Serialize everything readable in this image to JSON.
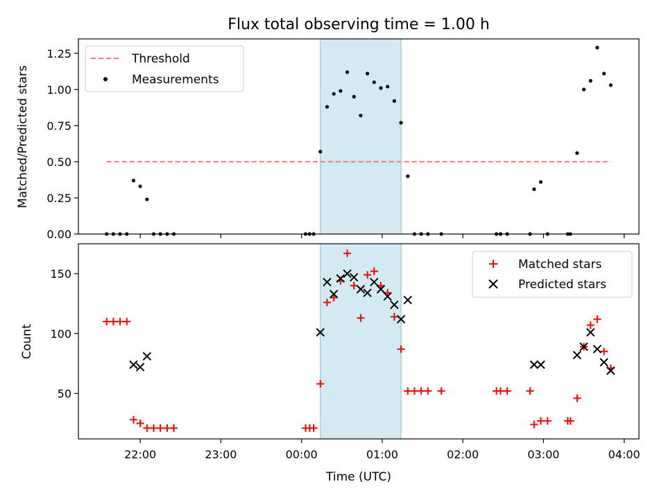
{
  "title": "Flux total observing time = 1.00 h",
  "xlabel": "Time (UTC)",
  "x_ticks": [
    "22:00",
    "23:00",
    "00:00",
    "01:00",
    "02:00",
    "03:00",
    "04:00"
  ],
  "colors": {
    "threshold": "#ff7777",
    "measurement": "#000000",
    "matched": "#ff0000",
    "predicted": "#000000",
    "shade": "#add8e6"
  },
  "chart_data": [
    {
      "type": "scatter",
      "ylabel": "Matched/Predicted stars",
      "xlim": [
        "21:14",
        "04:11"
      ],
      "ylim": [
        0,
        1.35
      ],
      "y_ticks": [
        "0.00",
        "0.25",
        "0.50",
        "0.75",
        "1.00",
        "1.25"
      ],
      "shaded_interval": [
        "00:14",
        "01:14"
      ],
      "threshold": {
        "label": "Threshold",
        "value": 0.5,
        "x_range": [
          "21:35",
          "03:50"
        ]
      },
      "legend": {
        "placement": "top-left",
        "entries": [
          "Threshold",
          "Measurements"
        ]
      },
      "series": [
        {
          "name": "Measurements",
          "marker": "dot",
          "points": [
            [
              "21:35",
              0
            ],
            [
              "21:40",
              0
            ],
            [
              "21:45",
              0
            ],
            [
              "21:50",
              0
            ],
            [
              "21:55",
              0.37
            ],
            [
              "22:00",
              0.33
            ],
            [
              "22:05",
              0.24
            ],
            [
              "22:10",
              0
            ],
            [
              "22:15",
              0
            ],
            [
              "22:20",
              0
            ],
            [
              "22:25",
              0
            ],
            [
              "00:03",
              0
            ],
            [
              "00:06",
              0
            ],
            [
              "00:09",
              0
            ],
            [
              "00:14",
              0.57
            ],
            [
              "00:19",
              0.88
            ],
            [
              "00:24",
              0.97
            ],
            [
              "00:29",
              0.99
            ],
            [
              "00:34",
              1.12
            ],
            [
              "00:39",
              0.95
            ],
            [
              "00:44",
              0.82
            ],
            [
              "00:49",
              1.11
            ],
            [
              "00:54",
              1.05
            ],
            [
              "00:59",
              1.01
            ],
            [
              "01:04",
              1.02
            ],
            [
              "01:09",
              0.92
            ],
            [
              "01:14",
              0.77
            ],
            [
              "01:19",
              0.4
            ],
            [
              "01:24",
              0
            ],
            [
              "01:29",
              0
            ],
            [
              "01:34",
              0
            ],
            [
              "01:44",
              0
            ],
            [
              "02:25",
              0
            ],
            [
              "02:28",
              0
            ],
            [
              "02:33",
              0
            ],
            [
              "02:50",
              0
            ],
            [
              "02:53",
              0.31
            ],
            [
              "02:58",
              0.36
            ],
            [
              "03:03",
              0
            ],
            [
              "03:18",
              0
            ],
            [
              "03:20",
              0
            ],
            [
              "03:25",
              0.56
            ],
            [
              "03:30",
              1.0
            ],
            [
              "03:35",
              1.06
            ],
            [
              "03:40",
              1.29
            ],
            [
              "03:45",
              1.11
            ],
            [
              "03:50",
              1.03
            ]
          ]
        }
      ]
    },
    {
      "type": "scatter",
      "ylabel": "Count",
      "xlim": [
        "21:14",
        "04:11"
      ],
      "ylim": [
        12,
        175
      ],
      "y_ticks": [
        "50",
        "100",
        "150"
      ],
      "shaded_interval": [
        "00:14",
        "01:14"
      ],
      "legend": {
        "placement": "top-right",
        "entries": [
          "Matched stars",
          "Predicted stars"
        ]
      },
      "series": [
        {
          "name": "Matched stars",
          "marker": "plus",
          "points": [
            [
              "21:35",
              110
            ],
            [
              "21:40",
              110
            ],
            [
              "21:45",
              110
            ],
            [
              "21:50",
              110
            ],
            [
              "21:55",
              28
            ],
            [
              "22:00",
              25
            ],
            [
              "22:05",
              21
            ],
            [
              "22:10",
              21
            ],
            [
              "22:15",
              21
            ],
            [
              "22:20",
              21
            ],
            [
              "22:25",
              21
            ],
            [
              "00:03",
              21
            ],
            [
              "00:06",
              21
            ],
            [
              "00:09",
              21
            ],
            [
              "00:14",
              58
            ],
            [
              "00:19",
              126
            ],
            [
              "00:24",
              130
            ],
            [
              "00:29",
              144
            ],
            [
              "00:34",
              167
            ],
            [
              "00:39",
              140
            ],
            [
              "00:44",
              113
            ],
            [
              "00:49",
              149
            ],
            [
              "00:54",
              152
            ],
            [
              "00:59",
              140
            ],
            [
              "01:04",
              134
            ],
            [
              "01:09",
              114
            ],
            [
              "01:14",
              87
            ],
            [
              "01:19",
              52
            ],
            [
              "01:24",
              52
            ],
            [
              "01:29",
              52
            ],
            [
              "01:34",
              52
            ],
            [
              "01:44",
              52
            ],
            [
              "02:25",
              52
            ],
            [
              "02:28",
              52
            ],
            [
              "02:33",
              52
            ],
            [
              "02:50",
              52
            ],
            [
              "02:53",
              24
            ],
            [
              "02:58",
              27
            ],
            [
              "03:03",
              27
            ],
            [
              "03:18",
              27
            ],
            [
              "03:20",
              27
            ],
            [
              "03:25",
              46
            ],
            [
              "03:30",
              89
            ],
            [
              "03:35",
              107
            ],
            [
              "03:40",
              112
            ],
            [
              "03:45",
              85
            ],
            [
              "03:50",
              71
            ]
          ]
        },
        {
          "name": "Predicted stars",
          "marker": "x",
          "points": [
            [
              "21:55",
              74
            ],
            [
              "22:00",
              72
            ],
            [
              "22:05",
              81
            ],
            [
              "00:14",
              101
            ],
            [
              "00:19",
              143
            ],
            [
              "00:24",
              133
            ],
            [
              "00:29",
              146
            ],
            [
              "00:34",
              150
            ],
            [
              "00:39",
              147
            ],
            [
              "00:44",
              137
            ],
            [
              "00:49",
              134
            ],
            [
              "00:54",
              143
            ],
            [
              "00:59",
              137
            ],
            [
              "01:04",
              131
            ],
            [
              "01:09",
              124
            ],
            [
              "01:14",
              112
            ],
            [
              "01:19",
              128
            ],
            [
              "02:53",
              74
            ],
            [
              "02:58",
              74
            ],
            [
              "03:25",
              82
            ],
            [
              "03:30",
              89
            ],
            [
              "03:35",
              101
            ],
            [
              "03:40",
              87
            ],
            [
              "03:45",
              76
            ],
            [
              "03:50",
              69
            ]
          ]
        }
      ]
    }
  ]
}
